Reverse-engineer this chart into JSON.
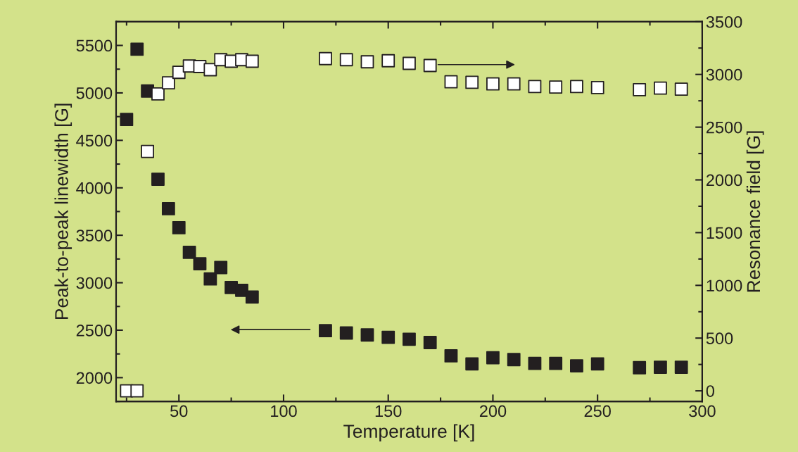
{
  "chart_data": {
    "type": "scatter",
    "xlabel": "Temperature [K]",
    "ylabel": "Peak-to-peak linewidth [G]",
    "y2label": "Resonance field [G]",
    "marker": "square",
    "grid": false,
    "legend": false,
    "xlim": [
      20,
      300
    ],
    "xticks": [
      50,
      100,
      150,
      200,
      250,
      300
    ],
    "ylim": [
      1750,
      5750
    ],
    "yticks": [
      2000,
      2500,
      3000,
      3500,
      4000,
      4500,
      5000,
      5500
    ],
    "y2lim": [
      -100,
      3500
    ],
    "y2ticks": [
      0,
      500,
      1000,
      1500,
      2000,
      2500,
      3000,
      3500
    ],
    "series": [
      {
        "color": "#231f20",
        "axis": "y",
        "x": [
          25,
          30,
          35,
          40,
          45,
          50,
          55,
          60,
          65,
          70,
          75,
          80,
          85,
          120,
          130,
          140,
          150,
          160,
          170,
          180,
          190,
          200,
          210,
          220,
          230,
          240,
          250,
          270,
          280,
          290
        ],
        "values": [
          4720,
          5460,
          5020,
          4090,
          3780,
          3580,
          3320,
          3200,
          3040,
          3160,
          2950,
          2920,
          2850,
          2495,
          2470,
          2450,
          2425,
          2405,
          2370,
          2230,
          2145,
          2210,
          2190,
          2150,
          2150,
          2125,
          2145,
          2105,
          2110,
          2110
        ]
      },
      {
        "color": "#ffffff",
        "axis": "y2",
        "x": [
          25,
          30,
          35,
          40,
          45,
          50,
          55,
          60,
          65,
          70,
          75,
          80,
          85,
          120,
          130,
          140,
          150,
          160,
          170,
          180,
          190,
          200,
          210,
          220,
          230,
          240,
          250,
          270,
          280,
          290
        ],
        "values": [
          0,
          0,
          2270,
          2815,
          2920,
          3020,
          3080,
          3075,
          3045,
          3140,
          3125,
          3140,
          3125,
          3150,
          3140,
          3120,
          3130,
          3105,
          3085,
          2930,
          2925,
          2910,
          2910,
          2885,
          2880,
          2885,
          2875,
          2855,
          2870,
          2860
        ]
      }
    ]
  }
}
